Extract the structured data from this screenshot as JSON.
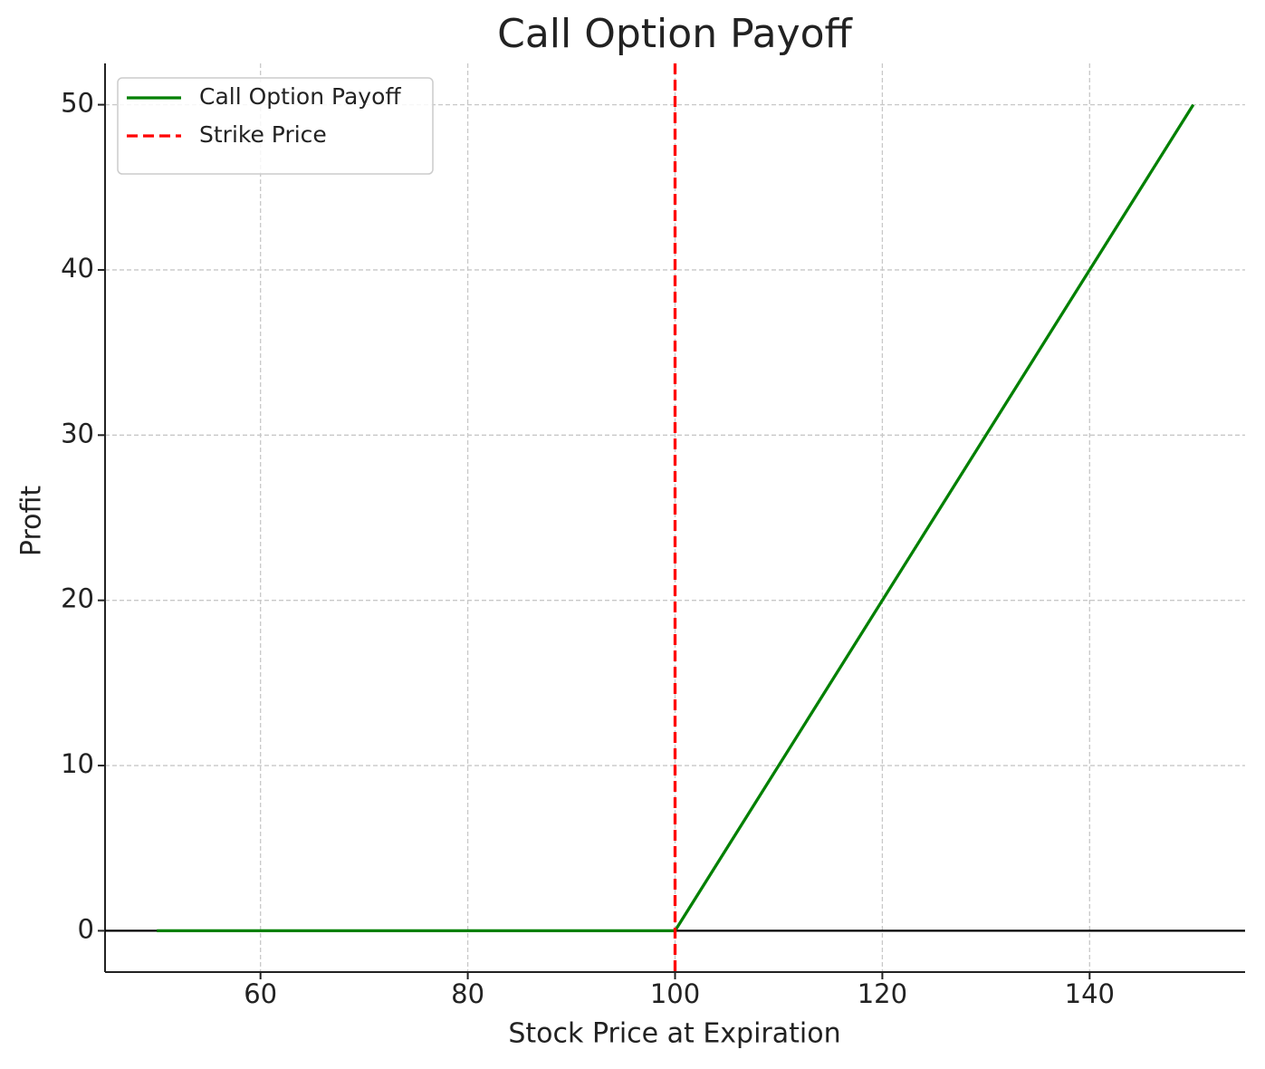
{
  "chart_data": {
    "type": "line",
    "title": "Call Option Payoff",
    "xlabel": "Stock Price at Expiration",
    "ylabel": "Profit",
    "x": [
      50,
      100,
      150
    ],
    "series": [
      {
        "name": "Call Option Payoff",
        "color": "#008000",
        "values": [
          0,
          0,
          50
        ]
      }
    ],
    "vline": {
      "name": "Strike Price",
      "value": 100,
      "color": "#ff0000"
    },
    "hline": {
      "value": 0,
      "color": "#000000"
    },
    "xlim": [
      45,
      155
    ],
    "ylim": [
      -2.5,
      52.5
    ],
    "xticks": [
      60,
      80,
      100,
      120,
      140
    ],
    "yticks": [
      0,
      10,
      20,
      30,
      40,
      50
    ],
    "grid": true,
    "legend": "upper-left"
  }
}
